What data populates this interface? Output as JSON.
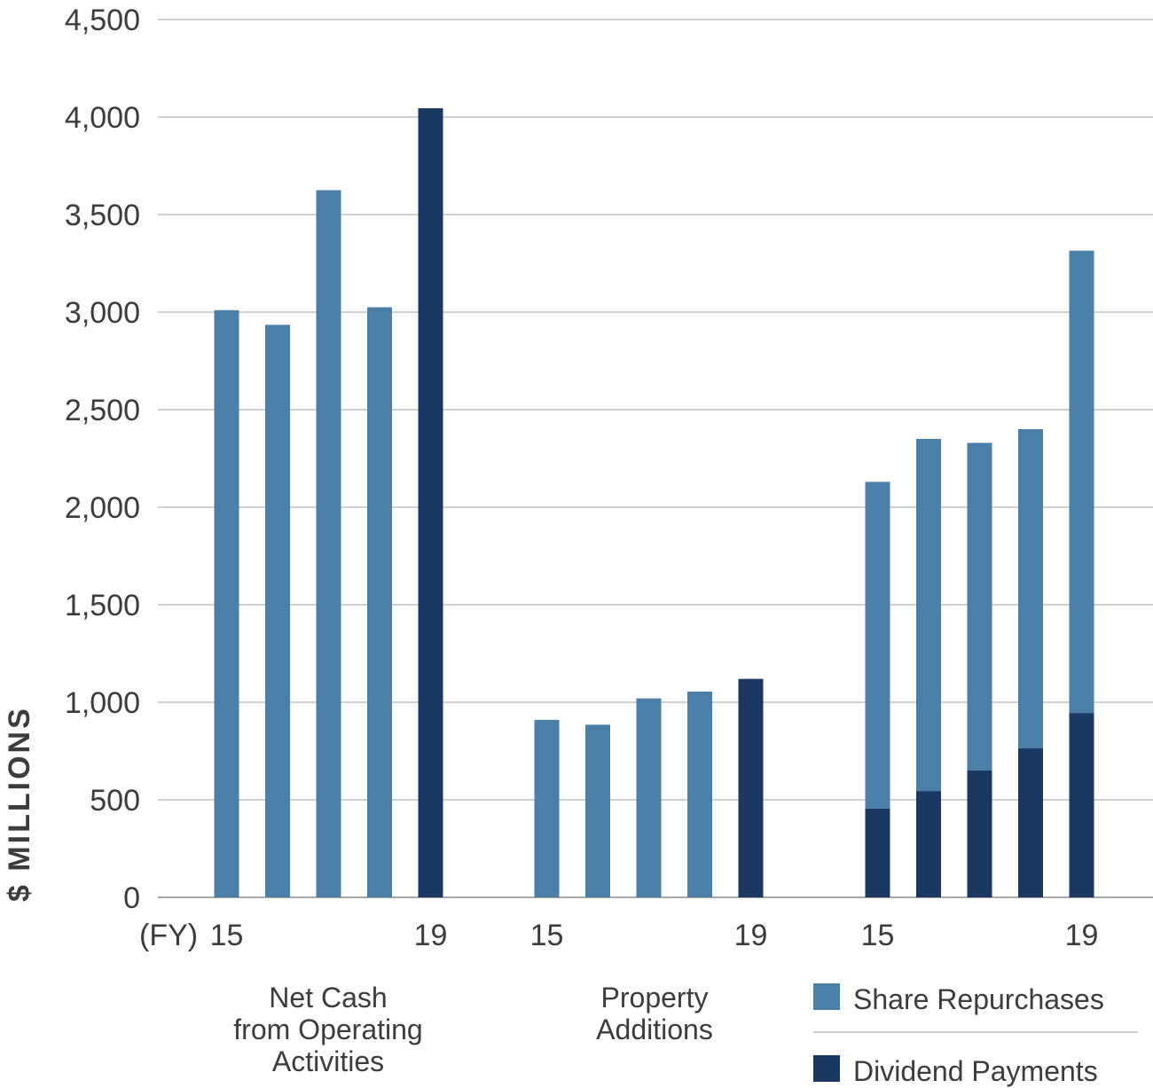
{
  "chart_data": {
    "type": "bar",
    "ylabel": "$ MILLIONS",
    "ylim": [
      0,
      4500
    ],
    "yticks": [
      "0",
      "500",
      "1,000",
      "1,500",
      "2,000",
      "2,500",
      "3,000",
      "3,500",
      "4,000",
      "4,500"
    ],
    "ytick_values": [
      0,
      500,
      1000,
      1500,
      2000,
      2500,
      3000,
      3500,
      4000,
      4500
    ],
    "xaxis_prefix": "(FY)",
    "grid": true,
    "groups": [
      {
        "label_lines": [
          "Net Cash",
          "from Operating",
          "Activities"
        ],
        "tick_first": "15",
        "tick_last": "19",
        "values": [
          3010,
          2935,
          3625,
          3025,
          4045
        ],
        "highlight_index": 4
      },
      {
        "label_lines": [
          "Property",
          "Additions"
        ],
        "tick_first": "15",
        "tick_last": "19",
        "values": [
          910,
          885,
          1020,
          1055,
          1120
        ],
        "highlight_index": 4
      },
      {
        "stacked": true,
        "tick_first": "15",
        "tick_last": "19",
        "series": [
          {
            "name": "Dividend Payments",
            "values": [
              455,
              545,
              650,
              765,
              945
            ]
          },
          {
            "name": "Share Repurchases",
            "values": [
              1675,
              1805,
              1680,
              1635,
              2370
            ]
          }
        ]
      }
    ],
    "legend": {
      "placement": "bottom-right",
      "items": [
        {
          "label": "Share Repurchases",
          "color": "#4a80a8"
        },
        {
          "label": "Dividend Payments",
          "color": "#1b3862"
        }
      ]
    },
    "colors": {
      "light": "#4a80a8",
      "dark": "#1b3862"
    }
  }
}
